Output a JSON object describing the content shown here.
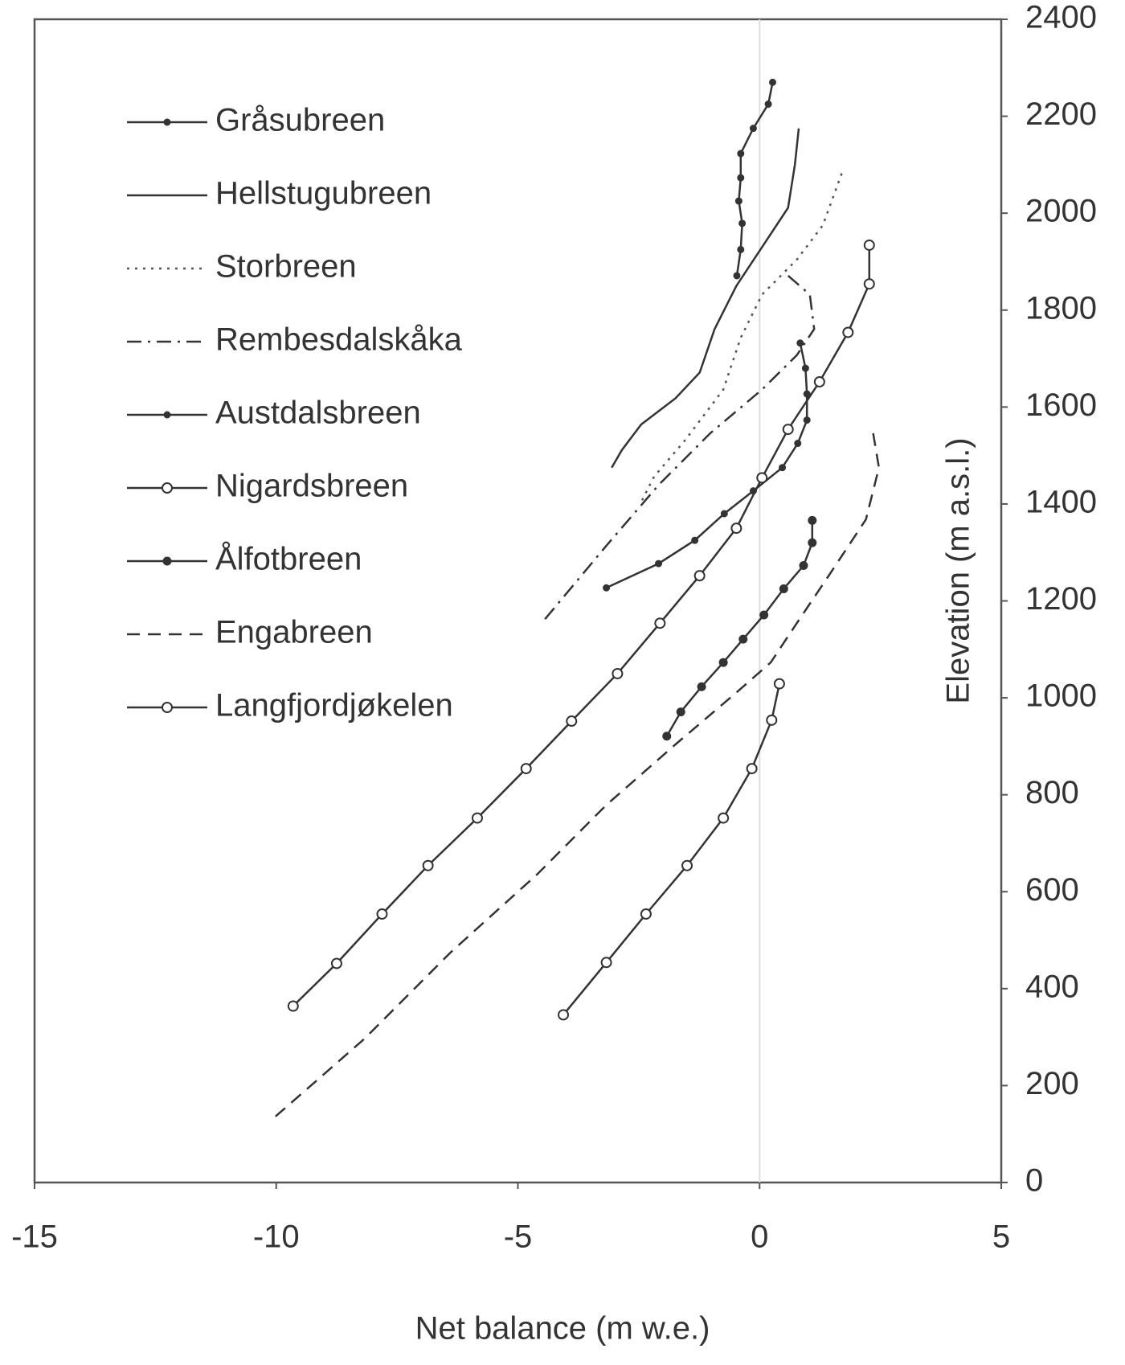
{
  "chart_data": {
    "type": "line",
    "xlabel": "Net balance (m w.e.)",
    "ylabel": "Elevation (m a.s.l.)",
    "xlim": [
      -15,
      5
    ],
    "xticks": [
      -15,
      -10,
      -5,
      0,
      5
    ],
    "ylim": [
      0,
      2400
    ],
    "yticks": [
      0,
      200,
      400,
      600,
      800,
      1000,
      1200,
      1400,
      1600,
      1800,
      2000,
      2200,
      2400
    ],
    "y_axis_side": "right",
    "zero_line": true,
    "legend": "upper left",
    "series": [
      {
        "name": "Gråsubreen",
        "color": "#333333",
        "dash": "solid",
        "marker": "dot",
        "x": [
          0.27,
          0.18,
          -0.13,
          -0.39,
          -0.39,
          -0.43,
          -0.36,
          -0.39,
          -0.47
        ],
        "y": [
          2270,
          2225,
          2175,
          2123,
          2073,
          2025,
          1979,
          1925,
          1871
        ]
      },
      {
        "name": "Hellstugubreen",
        "color": "#333333",
        "dash": "solid",
        "marker": "none",
        "x": [
          0.81,
          0.73,
          0.59,
          0.05,
          -0.48,
          -0.93,
          -1.24,
          -1.74,
          -2.45,
          -2.85,
          -3.06
        ],
        "y": [
          2175,
          2100,
          2011,
          1930,
          1850,
          1761,
          1671,
          1618,
          1564,
          1511,
          1475
        ]
      },
      {
        "name": "Storbreen",
        "color": "#555555",
        "dash": "dotted",
        "marker": "none",
        "x": [
          1.7,
          1.31,
          0.77,
          0.05,
          -0.39,
          -0.75,
          -1.56,
          -2.18,
          -2.45
        ],
        "y": [
          2082,
          1975,
          1904,
          1832,
          1743,
          1636,
          1529,
          1457,
          1404
        ]
      },
      {
        "name": "Rembesdalskåka",
        "color": "#333333",
        "dash": "dashdot",
        "marker": "none",
        "x": [
          0.59,
          1.04,
          1.13,
          0.77,
          0.05,
          -1.02,
          -2.09,
          -3.17,
          -4.51
        ],
        "y": [
          1871,
          1832,
          1761,
          1707,
          1636,
          1546,
          1439,
          1314,
          1154
        ]
      },
      {
        "name": "Austdalsbreen",
        "color": "#333333",
        "dash": "solid",
        "marker": "dot",
        "x": [
          0.84,
          0.95,
          0.98,
          0.98,
          0.79,
          0.47,
          -0.13,
          -0.73,
          -1.34,
          -2.09,
          -3.17
        ],
        "y": [
          1732,
          1680,
          1627,
          1573,
          1525,
          1475,
          1427,
          1380,
          1325,
          1277,
          1227
        ]
      },
      {
        "name": "Nigardsbreen",
        "color": "#333333",
        "dash": "solid",
        "marker": "circle-open",
        "x": [
          2.27,
          2.27,
          1.83,
          1.24,
          0.59,
          0.05,
          -0.48,
          -1.24,
          -2.06,
          -2.94,
          -3.89,
          -4.83,
          -5.84,
          -6.86,
          -7.81,
          -8.75,
          -9.65
        ],
        "y": [
          1934,
          1854,
          1754,
          1652,
          1554,
          1454,
          1350,
          1252,
          1154,
          1050,
          952,
          854,
          752,
          654,
          554,
          452,
          364
        ]
      },
      {
        "name": "Ålfotbreen",
        "color": "#333333",
        "dash": "solid",
        "marker": "dot-filled",
        "x": [
          1.09,
          1.09,
          0.91,
          0.5,
          0.09,
          -0.34,
          -0.75,
          -1.2,
          -1.63,
          -1.92
        ],
        "y": [
          1366,
          1320,
          1273,
          1225,
          1171,
          1121,
          1073,
          1023,
          971,
          921
        ]
      },
      {
        "name": "Engabreen",
        "color": "#333333",
        "dash": "dashed",
        "marker": "none",
        "x": [
          2.35,
          2.47,
          2.2,
          1.49,
          0.77,
          0.23,
          -0.48,
          -1.74,
          -3.17,
          -4.6,
          -6.39,
          -8.18,
          -10.12
        ],
        "y": [
          1546,
          1475,
          1368,
          1261,
          1154,
          1073,
          1011,
          904,
          779,
          636,
          475,
          296,
          127
        ]
      },
      {
        "name": "Langfjordjøkelen",
        "color": "#333333",
        "dash": "solid",
        "marker": "circle-open",
        "x": [
          0.41,
          0.25,
          -0.16,
          -0.75,
          -1.5,
          -2.35,
          -3.17,
          -4.06
        ],
        "y": [
          1029,
          954,
          854,
          752,
          654,
          554,
          454,
          346
        ]
      }
    ]
  }
}
